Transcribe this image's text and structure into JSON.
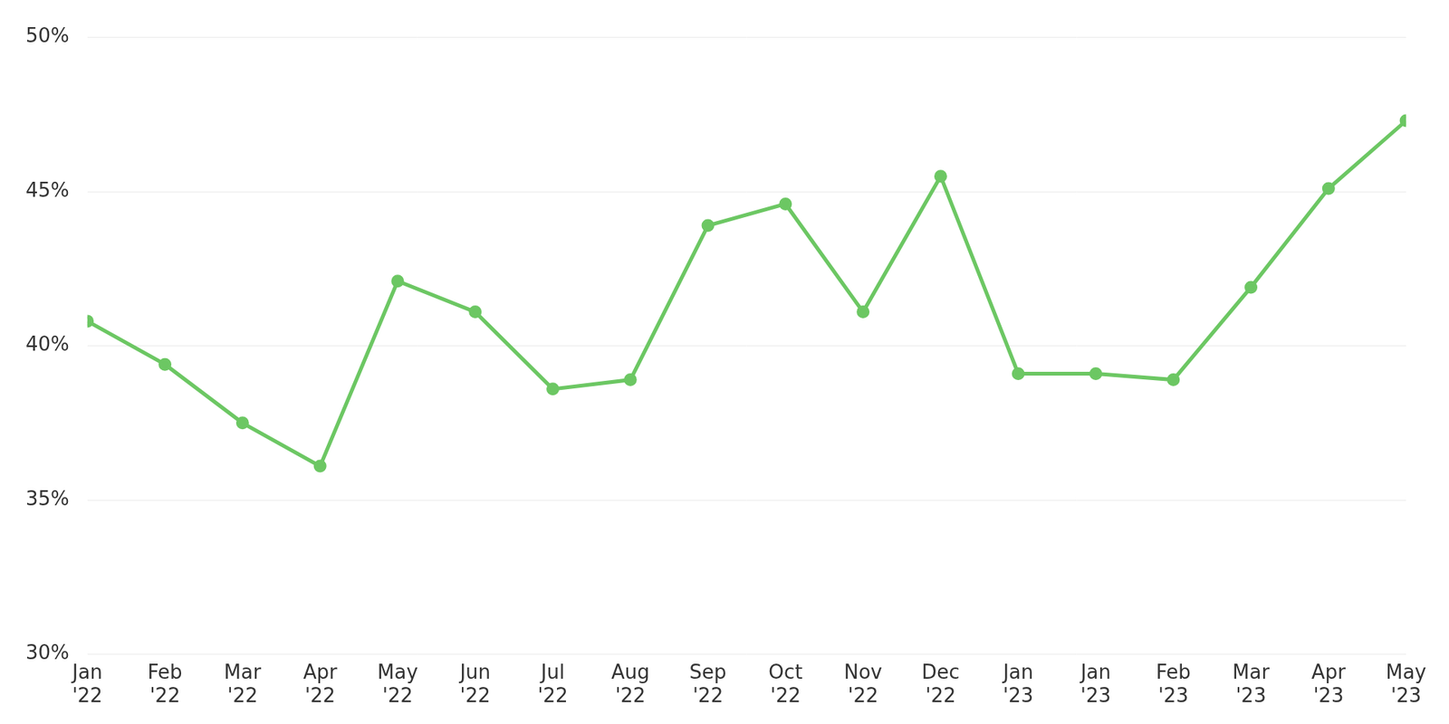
{
  "chart_data": {
    "type": "line",
    "categories": [
      "Jan '22",
      "Feb '22",
      "Mar '22",
      "Apr '22",
      "May '22",
      "Jun '22",
      "Jul '22",
      "Aug '22",
      "Sep '22",
      "Oct '22",
      "Nov '22",
      "Dec '22",
      "Jan '23",
      "Jan '23",
      "Feb '23",
      "Mar '23",
      "Apr '23",
      "May '23"
    ],
    "values": [
      40.8,
      39.4,
      37.5,
      36.1,
      42.1,
      41.1,
      38.6,
      38.9,
      43.9,
      44.6,
      41.1,
      45.5,
      39.1,
      39.1,
      38.9,
      41.9,
      45.1,
      47.3
    ],
    "color": "#6cc763",
    "marker": "circle",
    "ylim": [
      30,
      50
    ],
    "yticks": [
      {
        "value": 30,
        "label": "30%"
      },
      {
        "value": 35,
        "label": "35%"
      },
      {
        "value": 40,
        "label": "40%"
      },
      {
        "value": 45,
        "label": "45%"
      },
      {
        "value": 50,
        "label": "50%"
      }
    ],
    "grid": true
  }
}
